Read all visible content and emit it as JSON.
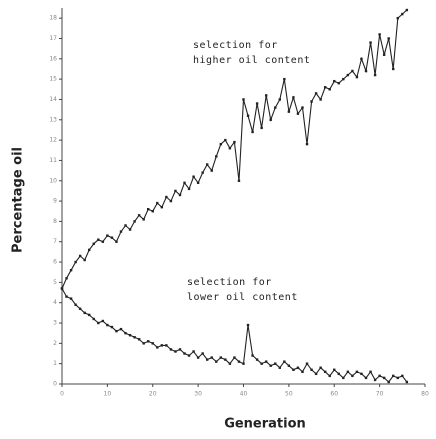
{
  "chart_data": {
    "type": "line",
    "xlabel": "Generation",
    "ylabel": "Percentage oil",
    "annotations": [
      [
        "selection for",
        "higher oil content"
      ],
      [
        "selection for",
        "lower oil content"
      ]
    ],
    "x": [
      0,
      1,
      2,
      3,
      4,
      5,
      6,
      7,
      8,
      9,
      10,
      11,
      12,
      13,
      14,
      15,
      16,
      17,
      18,
      19,
      20,
      21,
      22,
      23,
      24,
      25,
      26,
      27,
      28,
      29,
      30,
      31,
      32,
      33,
      34,
      35,
      36,
      37,
      38,
      39,
      40,
      41,
      42,
      43,
      44,
      45,
      46,
      47,
      48,
      49,
      50,
      51,
      52,
      53,
      54,
      55,
      56,
      57,
      58,
      59,
      60,
      61,
      62,
      63,
      64,
      65,
      66,
      67,
      68,
      69,
      70,
      71,
      72,
      73,
      74,
      75,
      76
    ],
    "series": [
      {
        "color": "#222222",
        "values": [
          4.7,
          5.2,
          5.6,
          6.0,
          6.3,
          6.1,
          6.6,
          6.9,
          7.1,
          7.0,
          7.3,
          7.2,
          7.0,
          7.5,
          7.8,
          7.6,
          8.0,
          8.3,
          8.1,
          8.6,
          8.5,
          8.9,
          8.7,
          9.2,
          9.0,
          9.5,
          9.3,
          9.9,
          9.6,
          10.2,
          9.9,
          10.4,
          10.8,
          10.5,
          11.2,
          11.8,
          12.0,
          11.6,
          11.9,
          10.0,
          14.0,
          13.2,
          12.4,
          13.8,
          12.6,
          14.2,
          13.0,
          13.6,
          14.0,
          15.0,
          13.4,
          14.1,
          13.3,
          13.6,
          11.8,
          13.9,
          14.3,
          14.0,
          14.6,
          14.5,
          14.9,
          14.8,
          15.0,
          15.2,
          15.4,
          15.1,
          16.0,
          15.4,
          16.8,
          15.2,
          17.2,
          16.2,
          17.0,
          15.5,
          18.0,
          18.2,
          18.4
        ]
      },
      {
        "color": "#222222",
        "values": [
          4.7,
          4.3,
          4.2,
          3.9,
          3.7,
          3.5,
          3.4,
          3.2,
          3.0,
          3.1,
          2.9,
          2.8,
          2.6,
          2.7,
          2.5,
          2.4,
          2.3,
          2.2,
          2.0,
          2.1,
          2.0,
          1.8,
          1.9,
          1.9,
          1.7,
          1.6,
          1.7,
          1.5,
          1.4,
          1.6,
          1.3,
          1.5,
          1.2,
          1.3,
          1.1,
          1.3,
          1.2,
          1.0,
          1.3,
          1.1,
          1.0,
          2.9,
          1.4,
          1.2,
          1.0,
          1.1,
          0.9,
          1.0,
          0.8,
          1.1,
          0.9,
          0.7,
          0.8,
          0.6,
          1.0,
          0.7,
          0.5,
          0.8,
          0.6,
          0.4,
          0.7,
          0.5,
          0.3,
          0.6,
          0.4,
          0.6,
          0.5,
          0.3,
          0.6,
          0.2,
          0.4,
          0.3,
          0.1,
          0.4,
          0.3,
          0.4,
          0.1
        ]
      }
    ],
    "xlim": [
      0,
      80
    ],
    "xticks": [
      0,
      10,
      20,
      30,
      40,
      50,
      60,
      70,
      80
    ],
    "ylim": [
      0,
      18.5
    ],
    "yticks": [
      0,
      1,
      2,
      3,
      4,
      5,
      6,
      7,
      8,
      9,
      10,
      11,
      12,
      13,
      14,
      15,
      16,
      17,
      18
    ]
  }
}
